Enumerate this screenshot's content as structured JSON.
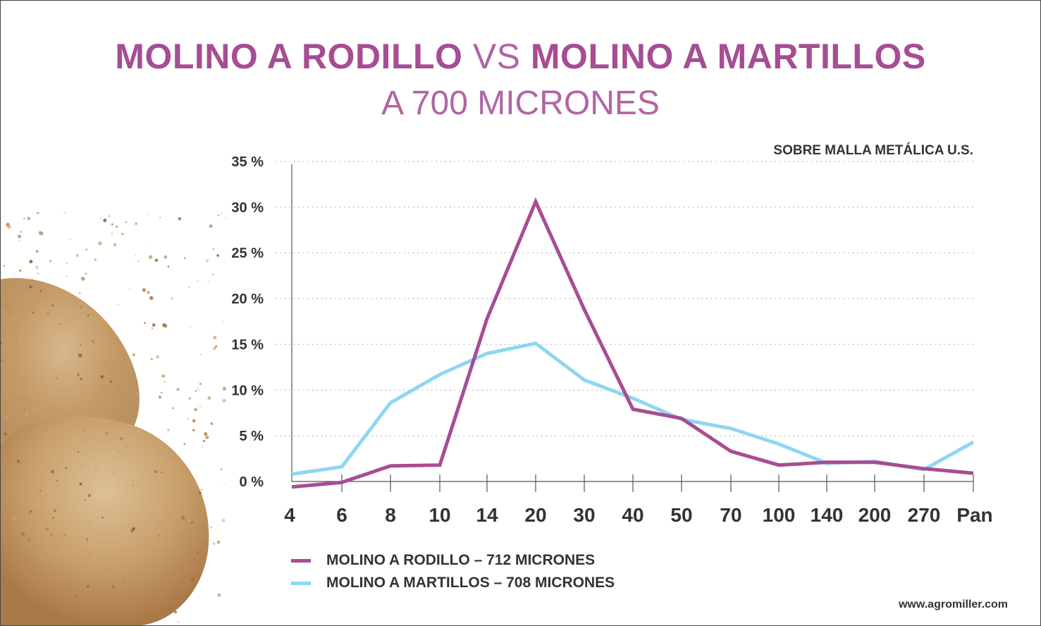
{
  "title": {
    "part1": "MOLINO A RODILLO",
    "vs": " VS ",
    "part2": "MOLINO A MARTILLOS"
  },
  "subtitle": "A 700 MICRONES",
  "note": "SOBRE MALLA METÁLICA U.S.",
  "website": "www.agromiller.com",
  "colors": {
    "title": "#a64d93",
    "roller": "#a64d93",
    "hammer": "#8fd6f2"
  },
  "chart_data": {
    "type": "line",
    "categories": [
      "4",
      "6",
      "8",
      "10",
      "14",
      "20",
      "30",
      "40",
      "50",
      "70",
      "100",
      "140",
      "200",
      "270",
      "Pan"
    ],
    "y_tick_labels": [
      "0 %",
      "5 %",
      "10 %",
      "15 %",
      "20 %",
      "25 %",
      "30 %",
      "35 %"
    ],
    "ylim": [
      0,
      35
    ],
    "grid": "horizontal dotted",
    "legend_position": "bottom",
    "series": [
      {
        "name": "MOLINO A RODILLO – 712 MICRONES",
        "color": "#a64d93",
        "values": [
          -0.6,
          -0.1,
          1.7,
          1.8,
          17.8,
          30.6,
          18.8,
          7.9,
          6.9,
          3.3,
          1.8,
          2.1,
          2.1,
          1.4,
          0.9
        ]
      },
      {
        "name": "MOLINO A MARTILLOS – 708 MICRONES",
        "color": "#8fd6f2",
        "values": [
          0.8,
          1.6,
          8.6,
          11.7,
          14.0,
          15.1,
          11.1,
          9.1,
          6.8,
          5.8,
          4.1,
          2.0,
          2.2,
          1.3,
          4.3
        ]
      }
    ]
  }
}
